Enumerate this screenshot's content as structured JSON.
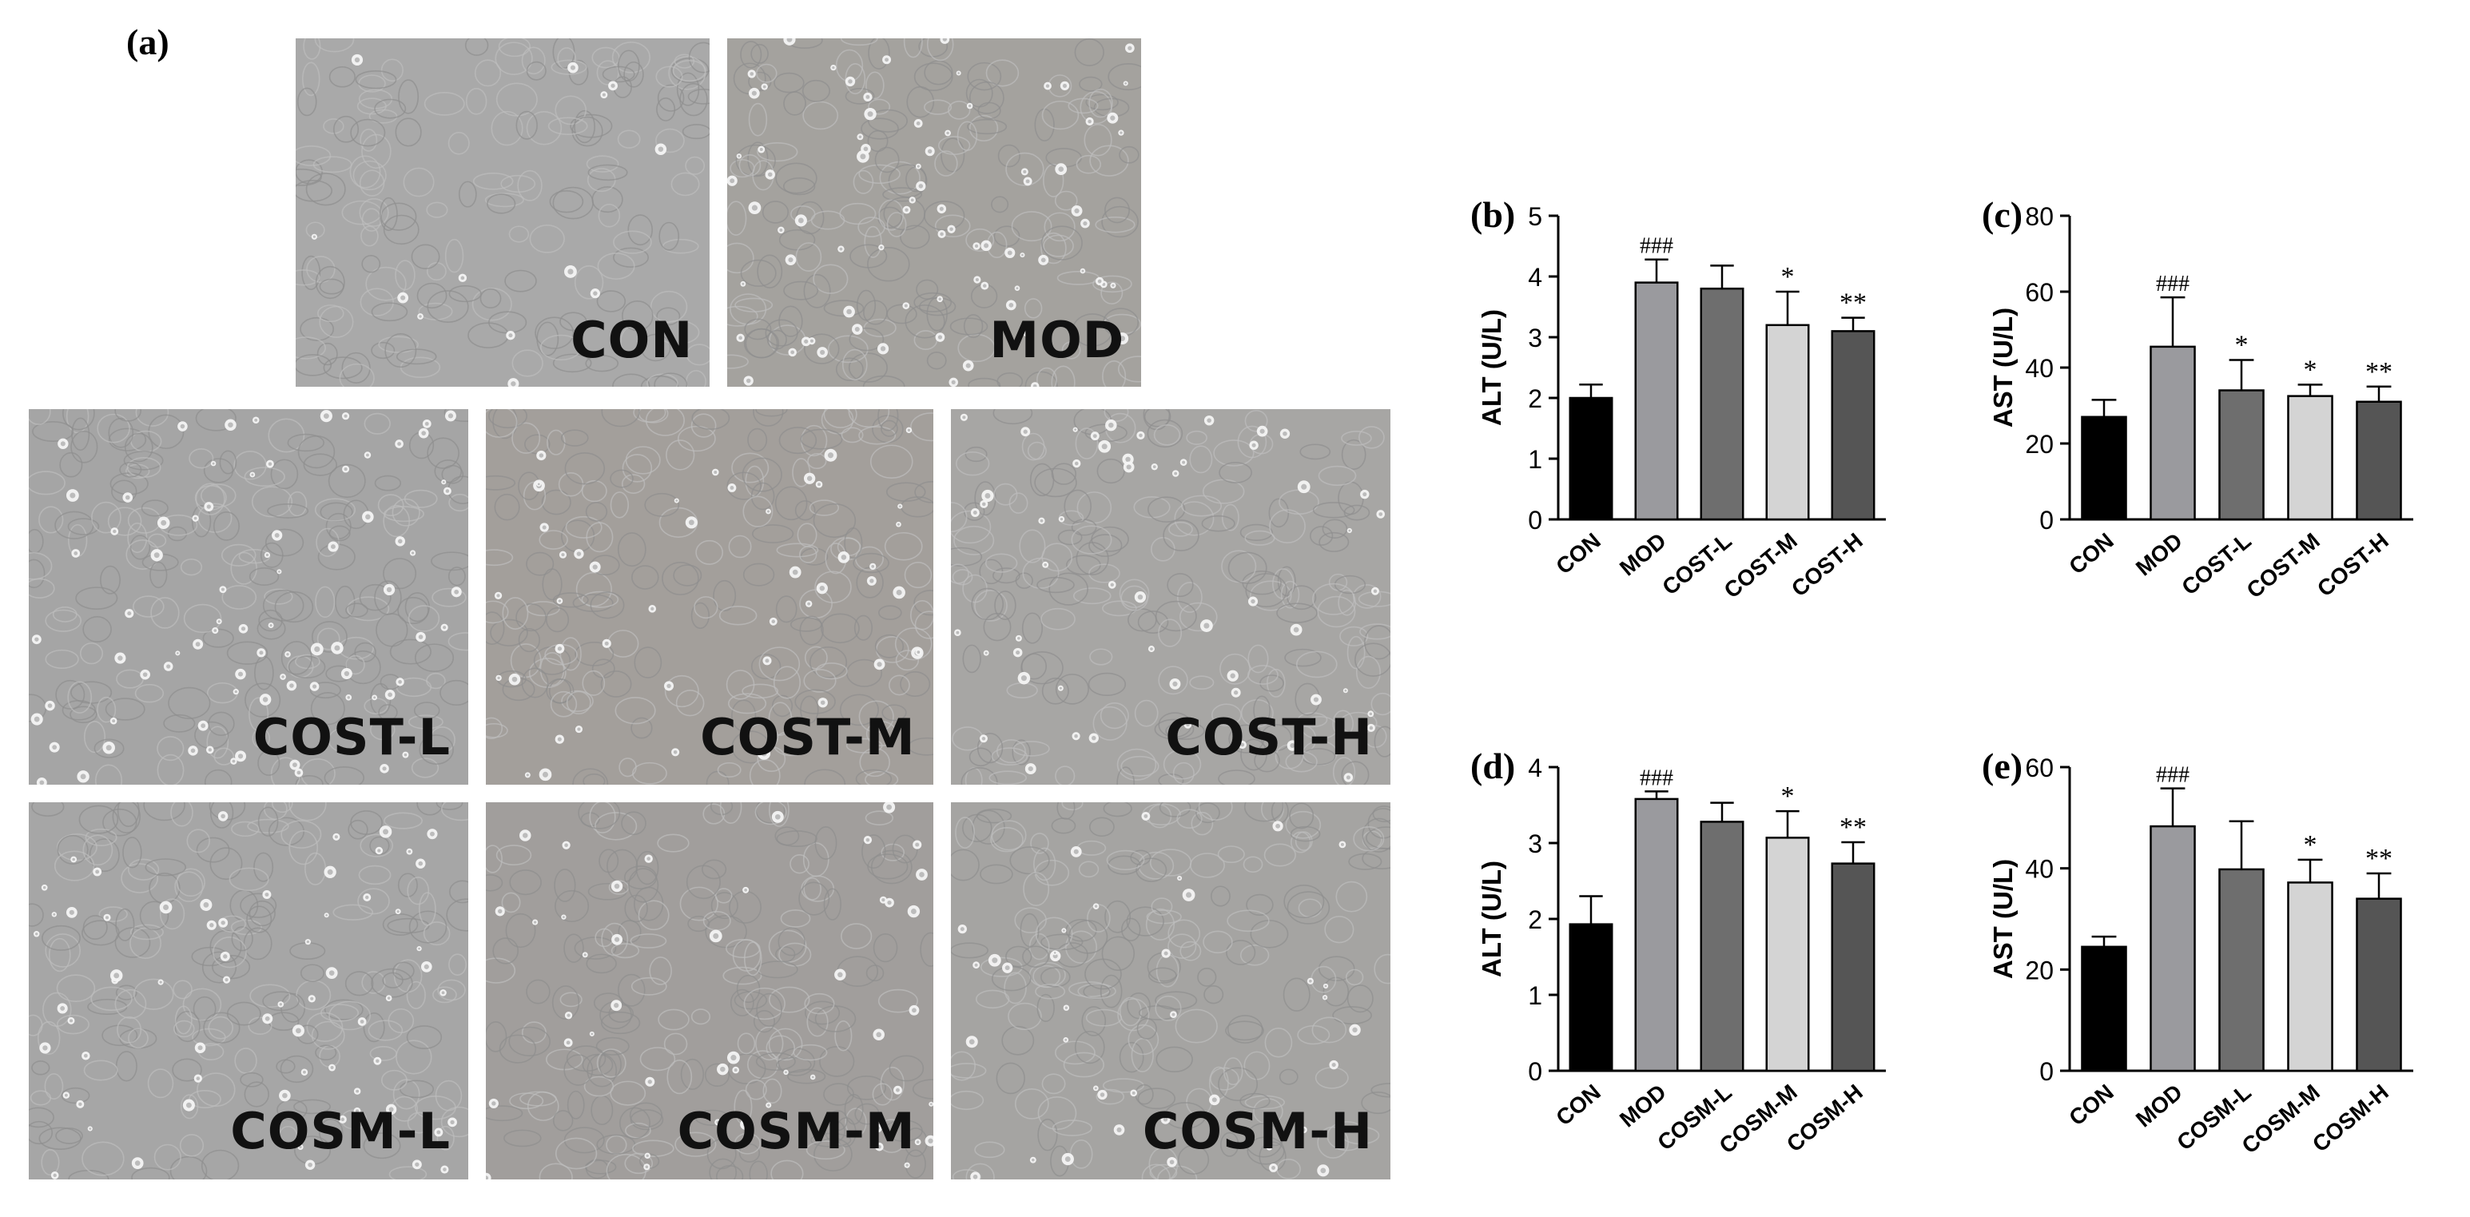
{
  "panel_a": {
    "label": "(a)",
    "images": [
      {
        "id": "con",
        "label": "CON",
        "density": 0.15,
        "tone": "#a9a9a9"
      },
      {
        "id": "mod",
        "label": "MOD",
        "density": 0.9,
        "tone": "#a4a29e"
      },
      {
        "id": "cost-l",
        "label": "COST-L",
        "density": 0.8,
        "tone": "#a5a5a5"
      },
      {
        "id": "cost-m",
        "label": "COST-M",
        "density": 0.45,
        "tone": "#a39f9b"
      },
      {
        "id": "cost-h",
        "label": "COST-H",
        "density": 0.55,
        "tone": "#a7a6a4"
      },
      {
        "id": "cosm-l",
        "label": "COSM-L",
        "density": 0.65,
        "tone": "#a6a6a6"
      },
      {
        "id": "cosm-m",
        "label": "COSM-M",
        "density": 0.45,
        "tone": "#a19e9c"
      },
      {
        "id": "cosm-h",
        "label": "COSM-H",
        "density": 0.4,
        "tone": "#a5a4a2"
      }
    ]
  },
  "chart_data": [
    {
      "panel": "(b)",
      "type": "bar",
      "ylabel": "ALT (U/L)",
      "xlabel": "",
      "ylim": [
        0,
        5
      ],
      "yticks": [
        0,
        1,
        2,
        3,
        4,
        5
      ],
      "categories": [
        "CON",
        "MOD",
        "COST-L",
        "COST-M",
        "COST-H"
      ],
      "values": [
        2.0,
        3.9,
        3.8,
        3.2,
        3.1
      ],
      "errors": [
        0.22,
        0.38,
        0.38,
        0.55,
        0.22
      ],
      "annotations": [
        "",
        "###",
        "",
        "*",
        "**"
      ],
      "colors": [
        "#000000",
        "#9a9a9e",
        "#6e6e6e",
        "#d4d4d4",
        "#555555"
      ]
    },
    {
      "panel": "(c)",
      "type": "bar",
      "ylabel": "AST (U/L)",
      "xlabel": "",
      "ylim": [
        0,
        80
      ],
      "yticks": [
        0,
        20,
        40,
        60,
        80
      ],
      "categories": [
        "CON",
        "MOD",
        "COST-L",
        "COST-M",
        "COST-H"
      ],
      "values": [
        27,
        45.5,
        34,
        32.5,
        31
      ],
      "errors": [
        4.5,
        13,
        8,
        3,
        4
      ],
      "annotations": [
        "",
        "###",
        "*",
        "*",
        "**"
      ],
      "colors": [
        "#000000",
        "#9a9a9e",
        "#6e6e6e",
        "#d4d4d4",
        "#555555"
      ]
    },
    {
      "panel": "(d)",
      "type": "bar",
      "ylabel": "ALT (U/L)",
      "xlabel": "",
      "ylim": [
        0,
        4
      ],
      "yticks": [
        0,
        1,
        2,
        3,
        4
      ],
      "categories": [
        "CON",
        "MOD",
        "COSM-L",
        "COSM-M",
        "COSM-H"
      ],
      "values": [
        1.93,
        3.58,
        3.28,
        3.07,
        2.73
      ],
      "errors": [
        0.37,
        0.1,
        0.25,
        0.35,
        0.28
      ],
      "annotations": [
        "",
        "###",
        "",
        "*",
        "**"
      ],
      "colors": [
        "#000000",
        "#9a9a9e",
        "#6e6e6e",
        "#d4d4d4",
        "#555555"
      ]
    },
    {
      "panel": "(e)",
      "type": "bar",
      "ylabel": "AST (U/L)",
      "xlabel": "",
      "ylim": [
        0,
        60
      ],
      "yticks": [
        0,
        20,
        40,
        60
      ],
      "categories": [
        "CON",
        "MOD",
        "COSM-L",
        "COSM-M",
        "COSM-H"
      ],
      "values": [
        24.5,
        48.3,
        39.8,
        37.2,
        34
      ],
      "errors": [
        2,
        7.5,
        9.5,
        4.5,
        5
      ],
      "annotations": [
        "",
        "###",
        "",
        "*",
        "**"
      ],
      "colors": [
        "#000000",
        "#9a9a9e",
        "#6e6e6e",
        "#d4d4d4",
        "#555555"
      ]
    }
  ]
}
